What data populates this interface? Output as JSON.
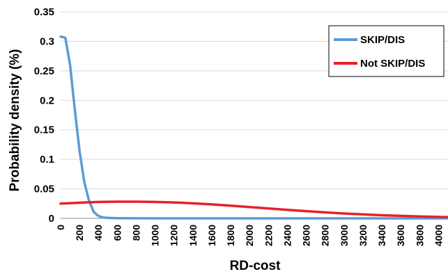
{
  "chart_data": {
    "type": "line",
    "xlabel": "RD-cost",
    "ylabel": "Probability density (%)",
    "xlim": [
      0,
      4100
    ],
    "ylim": [
      0,
      0.35
    ],
    "y_ticks": [
      "0",
      "0.05",
      "0.1",
      "0.15",
      "0.2",
      "0.25",
      "0.3",
      "0.35"
    ],
    "x_ticks": [
      "0",
      "200",
      "400",
      "600",
      "800",
      "1000",
      "1200",
      "1400",
      "1600",
      "1800",
      "2000",
      "2200",
      "2400",
      "2600",
      "2800",
      "3000",
      "3200",
      "3400",
      "3600",
      "3800",
      "4000"
    ],
    "grid": "horizontal",
    "legend_position": "top-right",
    "series": [
      {
        "name": "SKIP/DIS",
        "color": "#5b9bd5",
        "x": [
          0,
          50,
          100,
          150,
          200,
          250,
          300,
          350,
          400,
          450,
          500,
          600,
          800,
          1000,
          1500,
          2000,
          2500,
          3000,
          3500,
          4100
        ],
        "y": [
          0.308,
          0.306,
          0.26,
          0.185,
          0.115,
          0.062,
          0.03,
          0.011,
          0.004,
          0.0015,
          0.0008,
          0.0003,
          0.0001,
          0,
          0,
          0,
          0,
          0,
          0,
          0
        ]
      },
      {
        "name": "Not SKIP/DIS",
        "color": "#e8202a",
        "x": [
          0,
          200,
          400,
          600,
          800,
          1000,
          1200,
          1400,
          1600,
          1800,
          2000,
          2200,
          2400,
          2600,
          2800,
          3000,
          3200,
          3400,
          3600,
          3800,
          4000,
          4100
        ],
        "y": [
          0.025,
          0.0265,
          0.0278,
          0.0283,
          0.0283,
          0.0278,
          0.027,
          0.0255,
          0.0237,
          0.0215,
          0.0192,
          0.0168,
          0.0145,
          0.0122,
          0.0101,
          0.0083,
          0.0067,
          0.0053,
          0.0042,
          0.0033,
          0.0025,
          0.0022
        ]
      }
    ]
  }
}
